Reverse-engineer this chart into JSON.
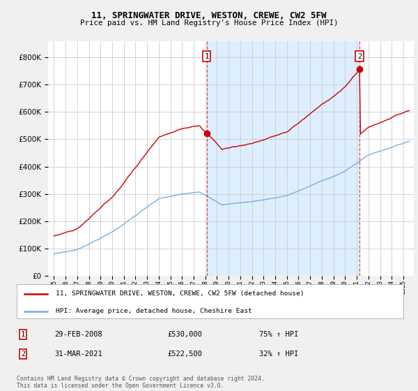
{
  "title1": "11, SPRINGWATER DRIVE, WESTON, CREWE, CW2 5FW",
  "title2": "Price paid vs. HM Land Registry's House Price Index (HPI)",
  "legend_label1": "11, SPRINGWATER DRIVE, WESTON, CREWE, CW2 5FW (detached house)",
  "legend_label2": "HPI: Average price, detached house, Cheshire East",
  "red_color": "#cc0000",
  "blue_color": "#7aaddc",
  "vline_color": "#cc0000",
  "sale1_year": 2008.12,
  "sale2_year": 2021.21,
  "sale1_price": 530000,
  "sale2_price": 522500,
  "footnote1": "Contains HM Land Registry data © Crown copyright and database right 2024.",
  "footnote2": "This data is licensed under the Open Government Licence v3.0.",
  "ylim_min": 0,
  "ylim_max": 860000,
  "yticks": [
    0,
    100000,
    200000,
    300000,
    400000,
    500000,
    600000,
    700000,
    800000
  ],
  "xmin": 1994.5,
  "xmax": 2025.9,
  "fig_bg": "#f0f0f0",
  "plot_bg": "#ffffff",
  "shaded_bg": "#ddeeff"
}
